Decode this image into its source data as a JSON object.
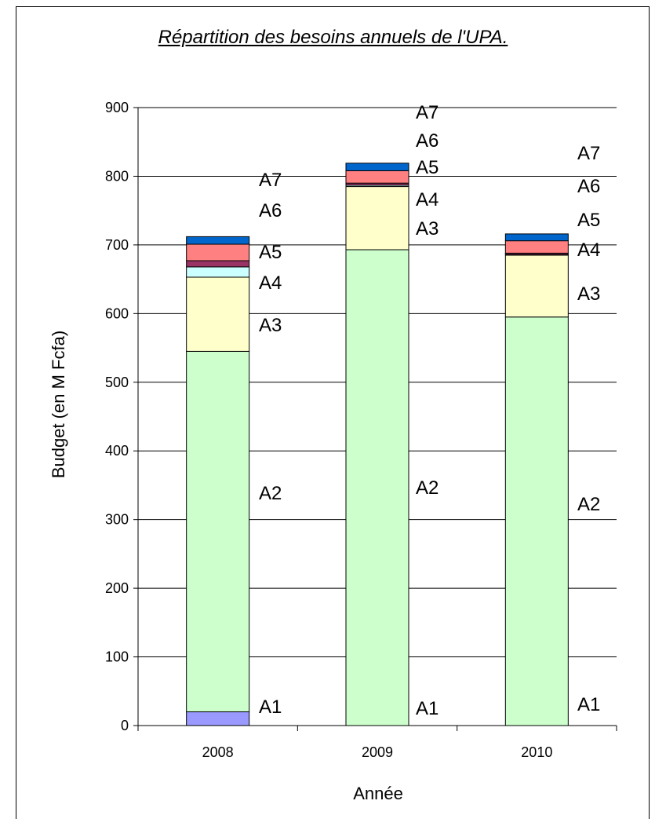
{
  "chart_data": {
    "type": "bar",
    "stacked": true,
    "title": "Répartition des besoins annuels de l'UPA.",
    "xlabel": "Année",
    "ylabel": "Budget (en M Fcfa)",
    "ylim": [
      0,
      900
    ],
    "yticks": [
      "0",
      "100",
      "200",
      "300",
      "400",
      "500",
      "600",
      "700",
      "800",
      "900"
    ],
    "grid": true,
    "categories": [
      "2008",
      "2009",
      "2010"
    ],
    "series": [
      {
        "name": "A1",
        "color": "#9999ff",
        "values": [
          20,
          0,
          0
        ]
      },
      {
        "name": "A2",
        "color": "#ccffcc",
        "values": [
          525,
          693,
          595
        ]
      },
      {
        "name": "A3",
        "color": "#ffffcc",
        "values": [
          108,
          92,
          90
        ]
      },
      {
        "name": "A4",
        "color": "#ccffff",
        "values": [
          15,
          2,
          1
        ]
      },
      {
        "name": "A5",
        "color": "#993366",
        "values": [
          9,
          3,
          2
        ]
      },
      {
        "name": "A6",
        "color": "#ff8080",
        "values": [
          24,
          18,
          18
        ]
      },
      {
        "name": "A7",
        "color": "#0066cc",
        "values": [
          11,
          11,
          10
        ]
      }
    ]
  }
}
